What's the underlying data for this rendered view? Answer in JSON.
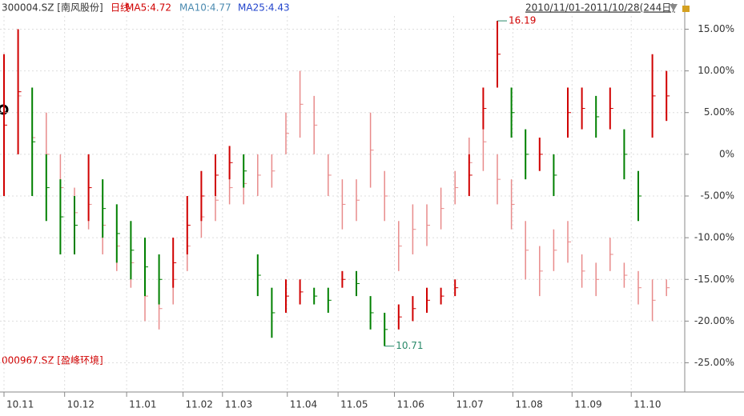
{
  "chart_data": {
    "type": "range_bar",
    "header": {
      "symbol": "300004.SZ [南风股份]",
      "period": "日线",
      "ma5": "MA5:4.72",
      "ma10": "MA10:4.77",
      "ma25": "MA25:4.43",
      "range": "2010/11/01-2011/10/28(244日)"
    },
    "compare_label": "000967.SZ [盈峰环境]",
    "ylim": [
      -28.5,
      18.5
    ],
    "yticks": [
      {
        "value": 15,
        "label": "15.00%"
      },
      {
        "value": 10,
        "label": "10.00%"
      },
      {
        "value": 5,
        "label": "5.00%"
      },
      {
        "value": 0,
        "label": "0%"
      },
      {
        "value": -5,
        "label": "-5.00%"
      },
      {
        "value": -10,
        "label": "-10.00%"
      },
      {
        "value": -15,
        "label": "-15.00%"
      },
      {
        "value": -20,
        "label": "-20.00%"
      },
      {
        "value": -25,
        "label": "-25.00%"
      }
    ],
    "months": [
      "10.11",
      "10.12",
      "11.01",
      "11.02",
      "11.03",
      "11.04",
      "11.05",
      "11.06",
      "11.07",
      "11.08",
      "11.09",
      "11.10"
    ],
    "month_at": [
      0,
      4.3,
      8.7,
      12.7,
      15.5,
      20.1,
      23.7,
      27.7,
      31.9,
      36.1,
      40.3,
      44.5
    ],
    "series": [
      {
        "name": "300004.SZ [南风股份]",
        "up_color": "#d00000",
        "down_color": "#008000",
        "low": [
          -5,
          0,
          -5,
          -8,
          -12,
          -12,
          -8,
          -10,
          -13,
          -15,
          -17,
          -18,
          -16,
          -12,
          -8,
          -5,
          -3,
          -4,
          -17,
          -22,
          -19,
          -18,
          -18,
          -19,
          -16,
          -17,
          -21,
          -23,
          -21,
          -20,
          -19,
          -18,
          -17,
          -5,
          3,
          8,
          2,
          -3,
          -2,
          -5,
          2,
          3,
          2,
          3,
          -3,
          -8,
          2,
          4
        ],
        "high": [
          12,
          15,
          8,
          0,
          -3,
          -5,
          0,
          -3,
          -6,
          -8,
          -10,
          -12,
          -10,
          -5,
          -2,
          0,
          1,
          0,
          -12,
          -16,
          -15,
          -15,
          -16,
          -16,
          -14,
          -14,
          -17,
          -19,
          -18,
          -17,
          -16,
          -16,
          -15,
          0,
          8,
          16,
          8,
          3,
          2,
          0,
          8,
          8,
          7,
          8,
          3,
          -2,
          12,
          10
        ]
      },
      {
        "name": "000967.SZ [盈峰环境]",
        "up_color": "#e88a8a",
        "down_color": "#e88a8a",
        "low": [
          -2,
          0,
          -4,
          -5,
          -8,
          -10,
          -9,
          -12,
          -14,
          -16,
          -20,
          -21,
          -18,
          -14,
          -10,
          -8,
          -6,
          -6,
          -5,
          -4,
          0,
          2,
          0,
          -5,
          -9,
          -8,
          -4,
          -8,
          -14,
          -12,
          -11,
          -9,
          -6,
          -4,
          -2,
          -6,
          -9,
          -15,
          -17,
          -14,
          -13,
          -16,
          -17,
          -14,
          -16,
          -18,
          -20,
          -17
        ],
        "high": [
          12,
          14,
          8,
          5,
          0,
          -4,
          -3,
          -5,
          -8,
          -10,
          -14,
          -16,
          -12,
          -8,
          -5,
          -3,
          -2,
          -1,
          0,
          0,
          5,
          10,
          7,
          0,
          -3,
          -3,
          5,
          -2,
          -8,
          -6,
          -6,
          -4,
          -2,
          2,
          5,
          0,
          -3,
          -8,
          -11,
          -9,
          -8,
          -12,
          -13,
          -10,
          -13,
          -14,
          -15,
          -15
        ]
      }
    ],
    "annotations": [
      {
        "text": "16.19",
        "index": 35,
        "at": "high"
      },
      {
        "text": "10.71",
        "index": 27,
        "at": "low"
      }
    ]
  }
}
